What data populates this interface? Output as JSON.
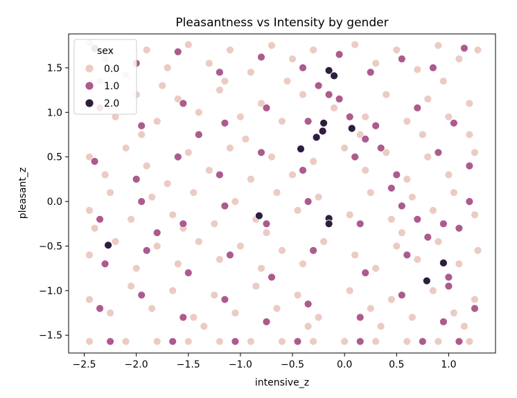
{
  "chart_data": {
    "type": "scatter",
    "title": "Pleasantness vs Intensity by gender",
    "xlabel": "intensive_z",
    "ylabel": "pleasant_z",
    "xlim": [
      -2.65,
      1.45
    ],
    "ylim": [
      -1.7,
      1.88
    ],
    "x_ticks": [
      -2.5,
      -2.0,
      -1.5,
      -1.0,
      -0.5,
      0.0,
      0.5,
      1.0
    ],
    "x_tick_labels": [
      "−2.5",
      "−2.0",
      "−1.5",
      "−1.0",
      "−0.5",
      "0.0",
      "0.5",
      "1.0"
    ],
    "y_ticks": [
      -1.5,
      -1.0,
      -0.5,
      0.0,
      0.5,
      1.0,
      1.5
    ],
    "y_tick_labels": [
      "−1.5",
      "−1.0",
      "−0.5",
      "0.0",
      "0.5",
      "1.0",
      "1.5"
    ],
    "grid": false,
    "legend": {
      "title": "sex",
      "placement": "top-left",
      "entries": [
        {
          "label": "0.0",
          "color": "#ebcbc2"
        },
        {
          "label": "1.0",
          "color": "#ad5a8e"
        },
        {
          "label": "2.0",
          "color": "#2d1e3e"
        }
      ]
    },
    "palette": {
      "bg": "#ffffff",
      "axis": "#000000",
      "edge": "#ffffff"
    },
    "series": [
      {
        "name": "0.0",
        "color": "#ebcbc2",
        "points": [
          [
            -2.45,
            1.78
          ],
          [
            -2.3,
            1.6
          ],
          [
            -2.1,
            1.42
          ],
          [
            -1.9,
            1.7
          ],
          [
            -1.7,
            1.5
          ],
          [
            -1.5,
            1.76
          ],
          [
            -1.3,
            1.55
          ],
          [
            -1.1,
            1.7
          ],
          [
            -0.9,
            1.45
          ],
          [
            -0.7,
            1.75
          ],
          [
            -0.5,
            1.6
          ],
          [
            -0.3,
            1.7
          ],
          [
            0.1,
            1.76
          ],
          [
            0.3,
            1.55
          ],
          [
            0.5,
            1.7
          ],
          [
            0.7,
            1.48
          ],
          [
            0.9,
            1.75
          ],
          [
            1.1,
            1.6
          ],
          [
            1.28,
            1.7
          ],
          [
            -2.45,
            1.1
          ],
          [
            -2.2,
            0.95
          ],
          [
            -2.0,
            1.2
          ],
          [
            -1.8,
            0.9
          ],
          [
            -1.6,
            1.15
          ],
          [
            -1.4,
            1.0
          ],
          [
            -1.2,
            1.25
          ],
          [
            -1.0,
            0.95
          ],
          [
            -0.8,
            1.1
          ],
          [
            -0.6,
            0.9
          ],
          [
            -0.4,
            1.2
          ],
          [
            -0.1,
            1.05
          ],
          [
            0.2,
            0.95
          ],
          [
            0.4,
            1.2
          ],
          [
            0.6,
            0.9
          ],
          [
            0.8,
            1.15
          ],
          [
            1.0,
            0.95
          ],
          [
            1.2,
            1.1
          ],
          [
            -2.45,
            0.5
          ],
          [
            -2.3,
            0.3
          ],
          [
            -2.1,
            0.6
          ],
          [
            -1.9,
            0.4
          ],
          [
            -1.7,
            0.2
          ],
          [
            -1.5,
            0.55
          ],
          [
            -1.3,
            0.35
          ],
          [
            -1.1,
            0.6
          ],
          [
            -0.9,
            0.25
          ],
          [
            -0.7,
            0.5
          ],
          [
            -0.5,
            0.3
          ],
          [
            -0.3,
            0.45
          ],
          [
            0.0,
            0.6
          ],
          [
            0.2,
            0.35
          ],
          [
            0.4,
            0.55
          ],
          [
            0.6,
            0.25
          ],
          [
            0.8,
            0.5
          ],
          [
            1.0,
            0.3
          ],
          [
            1.25,
            0.55
          ],
          [
            -2.45,
            -0.1
          ],
          [
            -2.25,
            0.1
          ],
          [
            -2.05,
            -0.2
          ],
          [
            -1.85,
            0.05
          ],
          [
            -1.65,
            -0.15
          ],
          [
            -1.45,
            0.1
          ],
          [
            -1.25,
            -0.25
          ],
          [
            -1.05,
            0.0
          ],
          [
            -0.85,
            -0.2
          ],
          [
            -0.65,
            0.1
          ],
          [
            -0.45,
            -0.1
          ],
          [
            -0.25,
            0.05
          ],
          [
            0.05,
            -0.15
          ],
          [
            0.25,
            0.1
          ],
          [
            0.45,
            -0.2
          ],
          [
            0.65,
            0.05
          ],
          [
            0.85,
            -0.1
          ],
          [
            1.05,
            0.1
          ],
          [
            1.25,
            -0.15
          ],
          [
            -2.45,
            -0.6
          ],
          [
            -2.2,
            -0.45
          ],
          [
            -2.0,
            -0.75
          ],
          [
            -1.8,
            -0.5
          ],
          [
            -1.6,
            -0.7
          ],
          [
            -1.4,
            -0.45
          ],
          [
            -1.2,
            -0.65
          ],
          [
            -1.0,
            -0.5
          ],
          [
            -0.8,
            -0.75
          ],
          [
            -0.6,
            -0.55
          ],
          [
            -0.4,
            -0.7
          ],
          [
            -0.2,
            -0.45
          ],
          [
            0.1,
            -0.6
          ],
          [
            0.3,
            -0.75
          ],
          [
            0.5,
            -0.5
          ],
          [
            0.7,
            -0.65
          ],
          [
            0.9,
            -0.45
          ],
          [
            1.1,
            -0.7
          ],
          [
            1.28,
            -0.55
          ],
          [
            -2.45,
            -1.1
          ],
          [
            -2.25,
            -1.25
          ],
          [
            -2.05,
            -0.95
          ],
          [
            -1.85,
            -1.2
          ],
          [
            -1.65,
            -1.0
          ],
          [
            -1.45,
            -1.3
          ],
          [
            -1.25,
            -1.05
          ],
          [
            -1.05,
            -1.25
          ],
          [
            -0.85,
            -0.95
          ],
          [
            -0.65,
            -1.2
          ],
          [
            -0.45,
            -1.05
          ],
          [
            -0.25,
            -1.3
          ],
          [
            0.05,
            -1.0
          ],
          [
            0.25,
            -1.2
          ],
          [
            0.45,
            -1.1
          ],
          [
            0.65,
            -1.3
          ],
          [
            0.85,
            -1.0
          ],
          [
            1.05,
            -1.25
          ],
          [
            1.25,
            -1.1
          ],
          [
            -2.45,
            -1.57
          ],
          [
            -2.1,
            -1.57
          ],
          [
            -1.8,
            -1.57
          ],
          [
            -1.5,
            -1.57
          ],
          [
            -1.2,
            -1.57
          ],
          [
            -0.9,
            -1.57
          ],
          [
            -0.6,
            -1.57
          ],
          [
            -0.3,
            -1.57
          ],
          [
            0.0,
            -1.57
          ],
          [
            0.3,
            -1.57
          ],
          [
            0.6,
            -1.57
          ],
          [
            0.9,
            -1.57
          ],
          [
            1.2,
            -1.57
          ],
          [
            -2.35,
            1.35
          ],
          [
            -1.95,
            0.75
          ],
          [
            -1.55,
            -0.3
          ],
          [
            -1.15,
            1.35
          ],
          [
            -0.75,
            -0.35
          ],
          [
            -0.35,
            -1.4
          ],
          [
            0.15,
            0.75
          ],
          [
            0.55,
            -0.35
          ],
          [
            0.95,
            1.35
          ],
          [
            1.15,
            -1.4
          ],
          [
            -2.4,
            -0.3
          ],
          [
            -1.75,
            1.3
          ],
          [
            -0.95,
            0.7
          ],
          [
            0.35,
            -1.4
          ],
          [
            0.75,
            0.75
          ],
          [
            -0.55,
            1.35
          ],
          [
            -1.35,
            -1.4
          ],
          [
            1.2,
            0.75
          ]
        ]
      },
      {
        "name": "1.0",
        "color": "#ad5a8e",
        "points": [
          [
            -2.4,
            1.72
          ],
          [
            -2.0,
            1.55
          ],
          [
            -1.6,
            1.68
          ],
          [
            -1.2,
            1.45
          ],
          [
            -0.8,
            1.62
          ],
          [
            -0.4,
            1.5
          ],
          [
            -0.05,
            1.65
          ],
          [
            0.25,
            1.45
          ],
          [
            0.55,
            1.6
          ],
          [
            0.85,
            1.5
          ],
          [
            1.15,
            1.72
          ],
          [
            -2.35,
            1.05
          ],
          [
            -1.95,
            0.85
          ],
          [
            -1.55,
            1.1
          ],
          [
            -1.15,
            0.88
          ],
          [
            -0.75,
            1.05
          ],
          [
            -0.35,
            0.9
          ],
          [
            -0.05,
            1.15
          ],
          [
            0.3,
            0.85
          ],
          [
            0.7,
            1.05
          ],
          [
            1.05,
            0.88
          ],
          [
            -2.4,
            0.45
          ],
          [
            -2.0,
            0.25
          ],
          [
            -1.6,
            0.5
          ],
          [
            -1.2,
            0.3
          ],
          [
            -0.8,
            0.55
          ],
          [
            -0.4,
            0.35
          ],
          [
            0.1,
            0.5
          ],
          [
            0.5,
            0.3
          ],
          [
            0.9,
            0.55
          ],
          [
            1.2,
            0.4
          ],
          [
            -2.35,
            -0.2
          ],
          [
            -1.95,
            0.0
          ],
          [
            -1.55,
            -0.25
          ],
          [
            -1.15,
            -0.05
          ],
          [
            -0.75,
            -0.25
          ],
          [
            -0.35,
            0.0
          ],
          [
            0.15,
            -0.25
          ],
          [
            0.55,
            -0.05
          ],
          [
            0.95,
            -0.25
          ],
          [
            1.2,
            0.0
          ],
          [
            -2.3,
            -0.7
          ],
          [
            -1.9,
            -0.55
          ],
          [
            -1.5,
            -0.8
          ],
          [
            -1.1,
            -0.6
          ],
          [
            -0.7,
            -0.85
          ],
          [
            -0.3,
            -0.55
          ],
          [
            0.2,
            -0.8
          ],
          [
            0.6,
            -0.6
          ],
          [
            1.0,
            -0.85
          ],
          [
            -2.35,
            -1.2
          ],
          [
            -1.95,
            -1.05
          ],
          [
            -1.55,
            -1.3
          ],
          [
            -1.15,
            -1.1
          ],
          [
            -0.75,
            -1.35
          ],
          [
            -0.35,
            -1.15
          ],
          [
            0.15,
            -1.3
          ],
          [
            0.55,
            -1.05
          ],
          [
            0.95,
            -1.35
          ],
          [
            1.25,
            -1.2
          ],
          [
            -2.25,
            -1.57
          ],
          [
            -1.65,
            -1.57
          ],
          [
            -1.05,
            -1.57
          ],
          [
            -0.45,
            -1.57
          ],
          [
            0.15,
            -1.57
          ],
          [
            0.75,
            -1.57
          ],
          [
            1.1,
            -1.57
          ],
          [
            -0.25,
            1.3
          ],
          [
            -0.15,
            1.2
          ],
          [
            0.05,
            0.95
          ],
          [
            0.2,
            0.7
          ],
          [
            0.35,
            0.6
          ],
          [
            0.45,
            0.15
          ],
          [
            0.7,
            -0.2
          ],
          [
            0.8,
            -0.4
          ],
          [
            1.0,
            -0.95
          ],
          [
            1.1,
            -0.3
          ],
          [
            -1.4,
            0.75
          ],
          [
            -1.8,
            -0.35
          ]
        ]
      },
      {
        "name": "2.0",
        "color": "#2d1e3e",
        "points": [
          [
            -0.15,
            1.47
          ],
          [
            -0.1,
            1.41
          ],
          [
            -0.2,
            0.88
          ],
          [
            -0.21,
            0.79
          ],
          [
            -0.27,
            0.72
          ],
          [
            0.07,
            0.82
          ],
          [
            -0.42,
            0.59
          ],
          [
            -0.82,
            -0.16
          ],
          [
            -0.15,
            -0.19
          ],
          [
            -0.15,
            -0.25
          ],
          [
            -2.27,
            -0.49
          ],
          [
            0.95,
            -0.69
          ],
          [
            0.79,
            -0.89
          ]
        ]
      }
    ]
  }
}
